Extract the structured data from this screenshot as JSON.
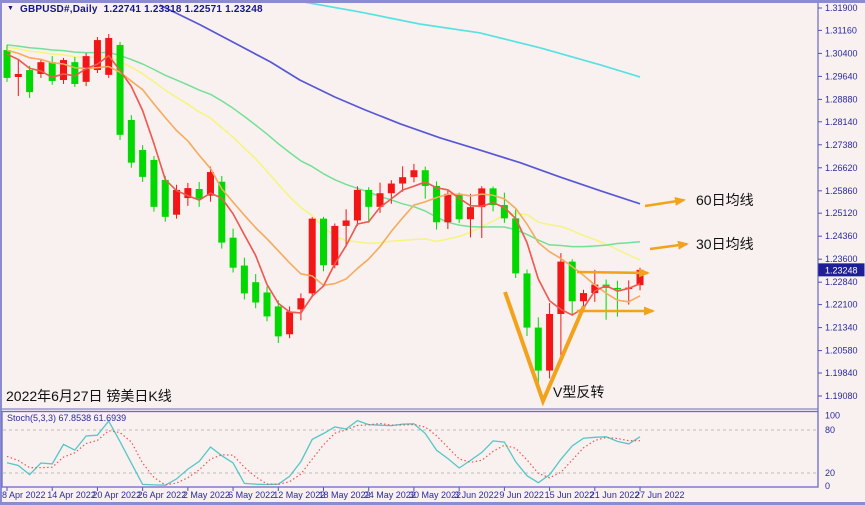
{
  "window": {
    "symbol_title": "GBPUSD#,Daily",
    "ohlc_text": "1.22741 1.23318 1.22571 1.23248"
  },
  "annotations": {
    "ma60_label": "60日均线",
    "ma30_label": "30日均线",
    "v_label": "V型反转",
    "caption": "2022年6月27日 镑美日K线"
  },
  "price_axis": {
    "ticks": [
      "1.31900",
      "1.31160",
      "1.30400",
      "1.29640",
      "1.28880",
      "1.28140",
      "1.27380",
      "1.26620",
      "1.25860",
      "1.25120",
      "1.24360",
      "1.23600",
      "1.22840",
      "1.22100",
      "1.21340",
      "1.20580",
      "1.19840",
      "1.19080"
    ],
    "current_price": "1.23248"
  },
  "stoch_panel": {
    "name": "Stoch(5,3,3)",
    "k_value": "67.8538",
    "d_value": "61.6939",
    "ticks": [
      "100",
      "80",
      "20",
      "0"
    ],
    "tick_values": [
      100,
      80,
      20,
      0
    ],
    "level_lines": [
      80,
      20
    ]
  },
  "date_axis": {
    "labels": [
      "8 Apr 2022",
      "14 Apr 2022",
      "20 Apr 2022",
      "26 Apr 2022",
      "2 May 2022",
      "6 May 2022",
      "12 May 2022",
      "18 May 2022",
      "24 May 2022",
      "30 May 2022",
      "3 Jun 2022",
      "9 Jun 2022",
      "15 Jun 2022",
      "21 Jun 2022",
      "27 Jun 2022"
    ],
    "label_indices": [
      0,
      4,
      8,
      12,
      16,
      20,
      24,
      28,
      32,
      36,
      40,
      44,
      48,
      52,
      56
    ]
  },
  "chart_data": {
    "type": "candlestick",
    "symbol": "GBPUSD#",
    "timeframe": "Daily",
    "ylim": [
      1.1908,
      1.319
    ],
    "up_color": "#f21616",
    "down_color": "#00d800",
    "dates": [
      "8 Apr 2022",
      "11 Apr 2022",
      "12 Apr 2022",
      "13 Apr 2022",
      "14 Apr 2022",
      "15 Apr 2022",
      "18 Apr 2022",
      "19 Apr 2022",
      "20 Apr 2022",
      "21 Apr 2022",
      "22 Apr 2022",
      "25 Apr 2022",
      "26 Apr 2022",
      "27 Apr 2022",
      "28 Apr 2022",
      "29 Apr 2022",
      "2 May 2022",
      "3 May 2022",
      "4 May 2022",
      "5 May 2022",
      "6 May 2022",
      "9 May 2022",
      "10 May 2022",
      "11 May 2022",
      "12 May 2022",
      "13 May 2022",
      "16 May 2022",
      "17 May 2022",
      "18 May 2022",
      "19 May 2022",
      "20 May 2022",
      "23 May 2022",
      "24 May 2022",
      "25 May 2022",
      "26 May 2022",
      "27 May 2022",
      "30 May 2022",
      "31 May 2022",
      "1 Jun 2022",
      "2 Jun 2022",
      "3 Jun 2022",
      "6 Jun 2022",
      "7 Jun 2022",
      "8 Jun 2022",
      "9 Jun 2022",
      "10 Jun 2022",
      "13 Jun 2022",
      "14 Jun 2022",
      "15 Jun 2022",
      "16 Jun 2022",
      "17 Jun 2022",
      "20 Jun 2022",
      "21 Jun 2022",
      "22 Jun 2022",
      "23 Jun 2022",
      "24 Jun 2022",
      "27 Jun 2022"
    ],
    "ohlc": [
      [
        1.3051,
        1.3068,
        1.2946,
        1.2959
      ],
      [
        1.2962,
        1.3022,
        1.2899,
        1.2972
      ],
      [
        1.2985,
        1.2999,
        1.2893,
        1.2912
      ],
      [
        1.2972,
        1.3022,
        1.2959,
        1.3011
      ],
      [
        1.3011,
        1.3031,
        1.2936,
        1.2949
      ],
      [
        1.2952,
        1.3025,
        1.2939,
        1.3018
      ],
      [
        1.3011,
        1.3028,
        1.2929,
        1.2939
      ],
      [
        1.2946,
        1.3041,
        1.2932,
        1.3031
      ],
      [
        1.2985,
        1.3094,
        1.2975,
        1.3084
      ],
      [
        1.2969,
        1.3104,
        1.2959,
        1.3091
      ],
      [
        1.3068,
        1.3078,
        1.2754,
        1.2771
      ],
      [
        1.282,
        1.2836,
        1.2662,
        1.2679
      ],
      [
        1.2721,
        1.2737,
        1.2615,
        1.2632
      ],
      [
        1.2688,
        1.2701,
        1.2517,
        1.2533
      ],
      [
        1.2622,
        1.2635,
        1.2484,
        1.25
      ],
      [
        1.2507,
        1.2606,
        1.2494,
        1.2589
      ],
      [
        1.2562,
        1.2612,
        1.2536,
        1.2595
      ],
      [
        1.2592,
        1.2615,
        1.2533,
        1.256
      ],
      [
        1.257,
        1.2666,
        1.255,
        1.2648
      ],
      [
        1.2616,
        1.2635,
        1.2395,
        1.2415
      ],
      [
        1.2431,
        1.2461,
        1.2316,
        1.2332
      ],
      [
        1.2339,
        1.2365,
        1.2227,
        1.2247
      ],
      [
        1.2284,
        1.2311,
        1.2198,
        1.2217
      ],
      [
        1.225,
        1.227,
        1.2155,
        1.2171
      ],
      [
        1.2204,
        1.2224,
        1.2083,
        1.2105
      ],
      [
        1.2112,
        1.2204,
        1.2099,
        1.2187
      ],
      [
        1.2194,
        1.2247,
        1.2158,
        1.2231
      ],
      [
        1.2247,
        1.2499,
        1.2234,
        1.2494
      ],
      [
        1.2494,
        1.25,
        1.232,
        1.234
      ],
      [
        1.234,
        1.2478,
        1.233,
        1.247
      ],
      [
        1.247,
        1.2525,
        1.24,
        1.2488
      ],
      [
        1.2488,
        1.2601,
        1.247,
        1.2589
      ],
      [
        1.2589,
        1.2598,
        1.248,
        1.2533
      ],
      [
        1.2533,
        1.2613,
        1.2513,
        1.2578
      ],
      [
        1.2578,
        1.2621,
        1.2543,
        1.261
      ],
      [
        1.261,
        1.2667,
        1.2583,
        1.2631
      ],
      [
        1.2631,
        1.2675,
        1.2614,
        1.2654
      ],
      [
        1.2654,
        1.2666,
        1.256,
        1.2602
      ],
      [
        1.2602,
        1.2617,
        1.2458,
        1.2482
      ],
      [
        1.2482,
        1.2586,
        1.246,
        1.2576
      ],
      [
        1.2576,
        1.258,
        1.248,
        1.2492
      ],
      [
        1.2492,
        1.2576,
        1.2432,
        1.2532
      ],
      [
        1.2532,
        1.2601,
        1.243,
        1.2594
      ],
      [
        1.2594,
        1.26,
        1.2518,
        1.2539
      ],
      [
        1.2539,
        1.258,
        1.248,
        1.2495
      ],
      [
        1.2495,
        1.2525,
        1.2298,
        1.2313
      ],
      [
        1.2313,
        1.2326,
        1.2106,
        1.2134
      ],
      [
        1.2134,
        1.2168,
        1.1934,
        1.1992
      ],
      [
        1.1992,
        1.2215,
        1.1966,
        1.2179
      ],
      [
        1.2179,
        1.238,
        1.2041,
        1.2352
      ],
      [
        1.2352,
        1.236,
        1.2173,
        1.2221
      ],
      [
        1.2221,
        1.2259,
        1.2185,
        1.2248
      ],
      [
        1.2248,
        1.2325,
        1.2219,
        1.2276
      ],
      [
        1.2276,
        1.2293,
        1.216,
        1.2265
      ],
      [
        1.2265,
        1.2289,
        1.217,
        1.2263
      ],
      [
        1.2263,
        1.229,
        1.221,
        1.2266
      ],
      [
        1.22741,
        1.23318,
        1.22571,
        1.23248
      ]
    ],
    "short_mas": [
      {
        "period": 20,
        "color": "#f5f57e"
      },
      {
        "period": 30,
        "color": "#74e096"
      },
      {
        "period": 10,
        "color": "#f5ad62"
      },
      {
        "period": 5,
        "color": "#ef5a52"
      }
    ],
    "long_mas": [
      {
        "id": "ma-cyan",
        "color": "#57e2e2",
        "anchors": [
          [
            26.2,
            1.321
          ],
          [
            31.2,
            1.3177
          ],
          [
            36.5,
            1.3137
          ],
          [
            41.8,
            1.3108
          ],
          [
            47.2,
            1.3058
          ],
          [
            52.5,
            1.3002
          ],
          [
            56,
            1.2962
          ]
        ]
      },
      {
        "id": "ma-60",
        "color": "#5757d8",
        "anchors": [
          [
            13.5,
            1.32
          ],
          [
            17.1,
            1.3134
          ],
          [
            20.6,
            1.3065
          ],
          [
            23.3,
            1.3012
          ],
          [
            25.9,
            1.2952
          ],
          [
            29,
            1.2896
          ],
          [
            31.7,
            1.2853
          ],
          [
            34.8,
            1.2807
          ],
          [
            38.3,
            1.2761
          ],
          [
            41.8,
            1.2721
          ],
          [
            45.4,
            1.2679
          ],
          [
            48.9,
            1.2632
          ],
          [
            52.5,
            1.2586
          ],
          [
            56,
            1.2543
          ]
        ]
      }
    ],
    "stochastic": {
      "params": "5,3,3",
      "k_color": "#56c6c6",
      "d_color": "#e85858",
      "k_last": 67.8538,
      "d_last": 61.6939
    },
    "arrow_color": "#f2a31b"
  }
}
